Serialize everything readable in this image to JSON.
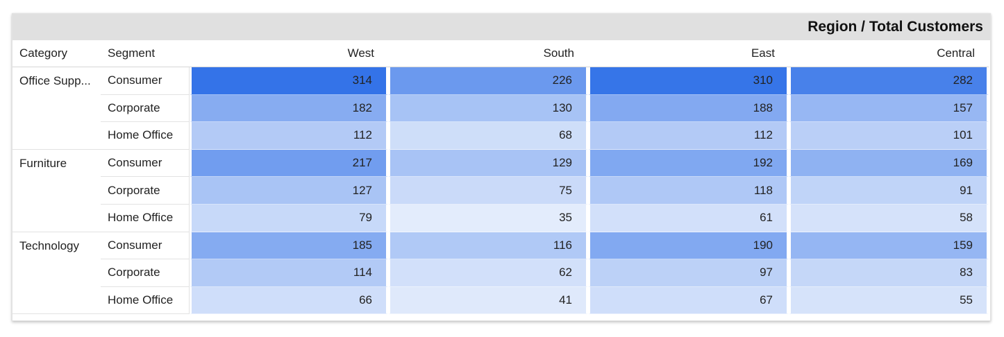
{
  "title": "Region / Total Customers",
  "headers": {
    "category": "Category",
    "segment": "Segment",
    "regions": [
      "West",
      "South",
      "East",
      "Central"
    ]
  },
  "max_value": 314,
  "cell_color": "#3473e8",
  "groups": [
    {
      "category": "Office Supp...",
      "rows": [
        {
          "segment": "Consumer",
          "values": [
            314,
            226,
            310,
            282
          ]
        },
        {
          "segment": "Corporate",
          "values": [
            182,
            130,
            188,
            157
          ]
        },
        {
          "segment": "Home Office",
          "values": [
            112,
            68,
            112,
            101
          ]
        }
      ]
    },
    {
      "category": "Furniture",
      "rows": [
        {
          "segment": "Consumer",
          "values": [
            217,
            129,
            192,
            169
          ]
        },
        {
          "segment": "Corporate",
          "values": [
            127,
            75,
            118,
            91
          ]
        },
        {
          "segment": "Home Office",
          "values": [
            79,
            35,
            61,
            58
          ]
        }
      ]
    },
    {
      "category": "Technology",
      "rows": [
        {
          "segment": "Consumer",
          "values": [
            185,
            116,
            190,
            159
          ]
        },
        {
          "segment": "Corporate",
          "values": [
            114,
            62,
            97,
            83
          ]
        },
        {
          "segment": "Home Office",
          "values": [
            66,
            41,
            67,
            55
          ]
        }
      ]
    }
  ]
}
